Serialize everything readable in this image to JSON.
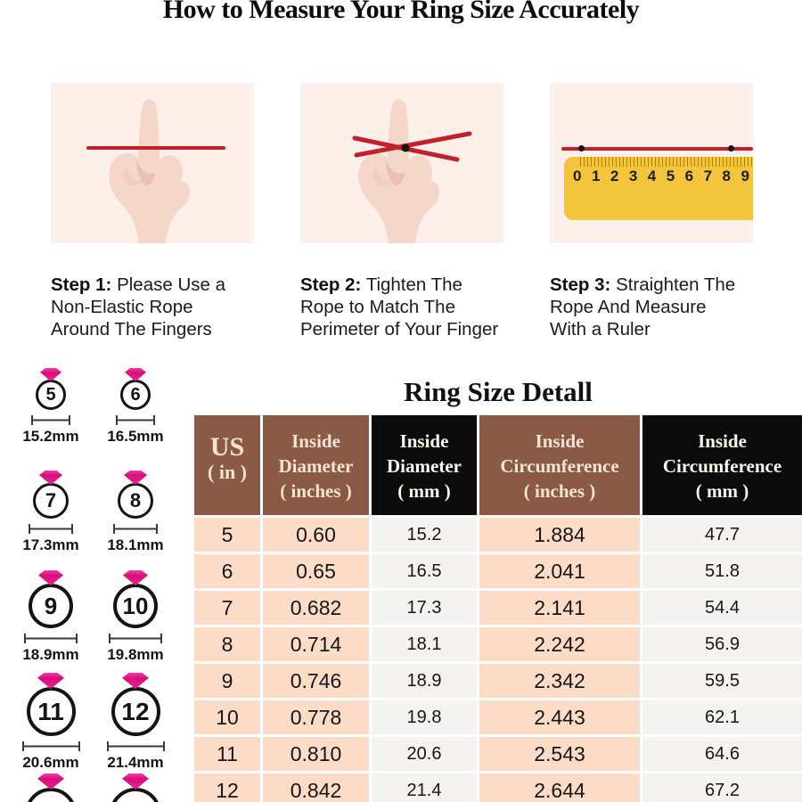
{
  "page": {
    "title": "How to Measure Your Ring Size Accurately"
  },
  "steps": [
    {
      "label": "Step 1:",
      "text": "Please Use a\nNon-Elastic Rope\nAround The Fingers",
      "illustration": "hand-with-rope-straight"
    },
    {
      "label": "Step 2:",
      "text": "Tighten The\nRope to Match The\nPerimeter of Your Finger",
      "illustration": "hand-with-rope-crossed"
    },
    {
      "label": "Step 3:",
      "text": "Straighten The\nRope And Measure\nWith a Ruler",
      "illustration": "rope-on-ruler"
    }
  ],
  "ruler": {
    "numbers": [
      "0",
      "1",
      "2",
      "3",
      "4",
      "5",
      "6",
      "7",
      "8",
      "9"
    ]
  },
  "ring_chart": {
    "items": [
      {
        "size": "5",
        "diameter_label": "15.2mm"
      },
      {
        "size": "6",
        "diameter_label": "16.5mm"
      },
      {
        "size": "7",
        "diameter_label": "17.3mm"
      },
      {
        "size": "8",
        "diameter_label": "18.1mm"
      },
      {
        "size": "9",
        "diameter_label": "18.9mm"
      },
      {
        "size": "10",
        "diameter_label": "19.8mm"
      },
      {
        "size": "11",
        "diameter_label": "20.6mm"
      },
      {
        "size": "12",
        "diameter_label": "21.4mm"
      },
      {
        "size": "",
        "diameter_label": ""
      },
      {
        "size": "",
        "diameter_label": ""
      }
    ]
  },
  "table": {
    "title": "Ring Size Detall",
    "headers": [
      "US\n( in )",
      "Inside\nDiameter\n( inches )",
      "Inside\nDiameter\n( mm )",
      "Inside\nCircumference\n( inches )",
      "Inside\nCircumference\n( mm )"
    ],
    "rows": [
      [
        "5",
        "0.60",
        "15.2",
        "1.884",
        "47.7"
      ],
      [
        "6",
        "0.65",
        "16.5",
        "2.041",
        "51.8"
      ],
      [
        "7",
        "0.682",
        "17.3",
        "2.141",
        "54.4"
      ],
      [
        "8",
        "0.714",
        "18.1",
        "2.242",
        "56.9"
      ],
      [
        "9",
        "0.746",
        "18.9",
        "2.342",
        "59.5"
      ],
      [
        "10",
        "0.778",
        "19.8",
        "2.443",
        "62.1"
      ],
      [
        "11",
        "0.810",
        "20.6",
        "2.543",
        "64.6"
      ],
      [
        "12",
        "0.842",
        "21.4",
        "2.644",
        "67.2"
      ]
    ]
  },
  "colors": {
    "header_brown": "#8a5a46",
    "header_black": "#0b0b0b",
    "cell_peach": "#fcdcc6",
    "cell_light": "#f4f3f1",
    "step_background": "#fdf0ea",
    "rope_red": "#c1212a",
    "ruler_yellow": "#f2c53d",
    "gem_pink": "#e8148a"
  }
}
